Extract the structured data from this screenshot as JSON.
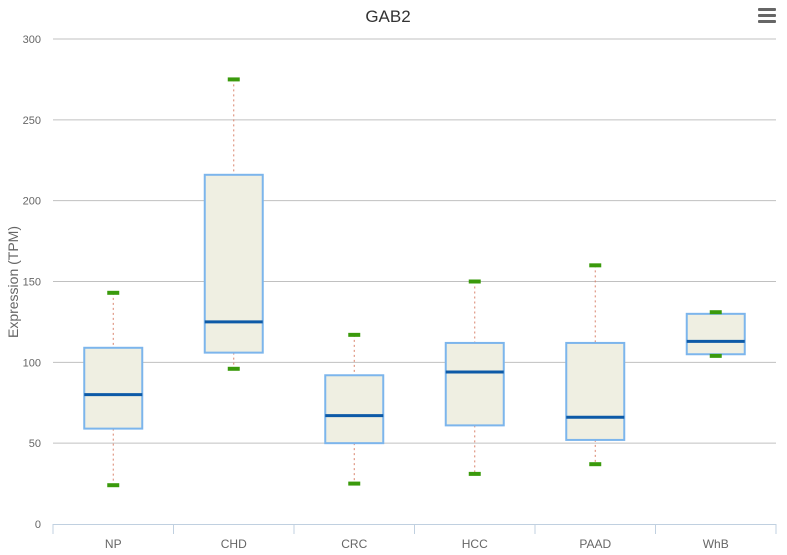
{
  "menu_icon": "hamburger-menu-icon",
  "chart_data": {
    "type": "boxplot",
    "title": "GAB2",
    "ylabel": "Expression (TPM)",
    "xlabel": "",
    "ylim": [
      0,
      300
    ],
    "yticks": [
      0,
      50,
      100,
      150,
      200,
      250,
      300
    ],
    "grid": true,
    "categories": [
      "NP",
      "CHD",
      "CRC",
      "HCC",
      "PAAD",
      "WhB"
    ],
    "boxes": [
      {
        "low": 24,
        "q1": 59,
        "median": 80,
        "q3": 109,
        "high": 143
      },
      {
        "low": 96,
        "q1": 106,
        "median": 125,
        "q3": 216,
        "high": 275
      },
      {
        "low": 25,
        "q1": 50,
        "median": 67,
        "q3": 92,
        "high": 117
      },
      {
        "low": 31,
        "q1": 61,
        "median": 94,
        "q3": 112,
        "high": 150
      },
      {
        "low": 37,
        "q1": 52,
        "median": 66,
        "q3": 112,
        "high": 160
      },
      {
        "low": 104,
        "q1": 105,
        "median": 113,
        "q3": 130,
        "high": 131
      }
    ],
    "colors": {
      "box_fill": "#efefe2",
      "box_stroke": "#7cb5ec",
      "median": "#0d5aa7",
      "whisker": "#d9826b",
      "cap": "#3a9a0c",
      "grid": "#c0c0c0",
      "axis": "#c0d0e0",
      "text": "#333333"
    }
  }
}
